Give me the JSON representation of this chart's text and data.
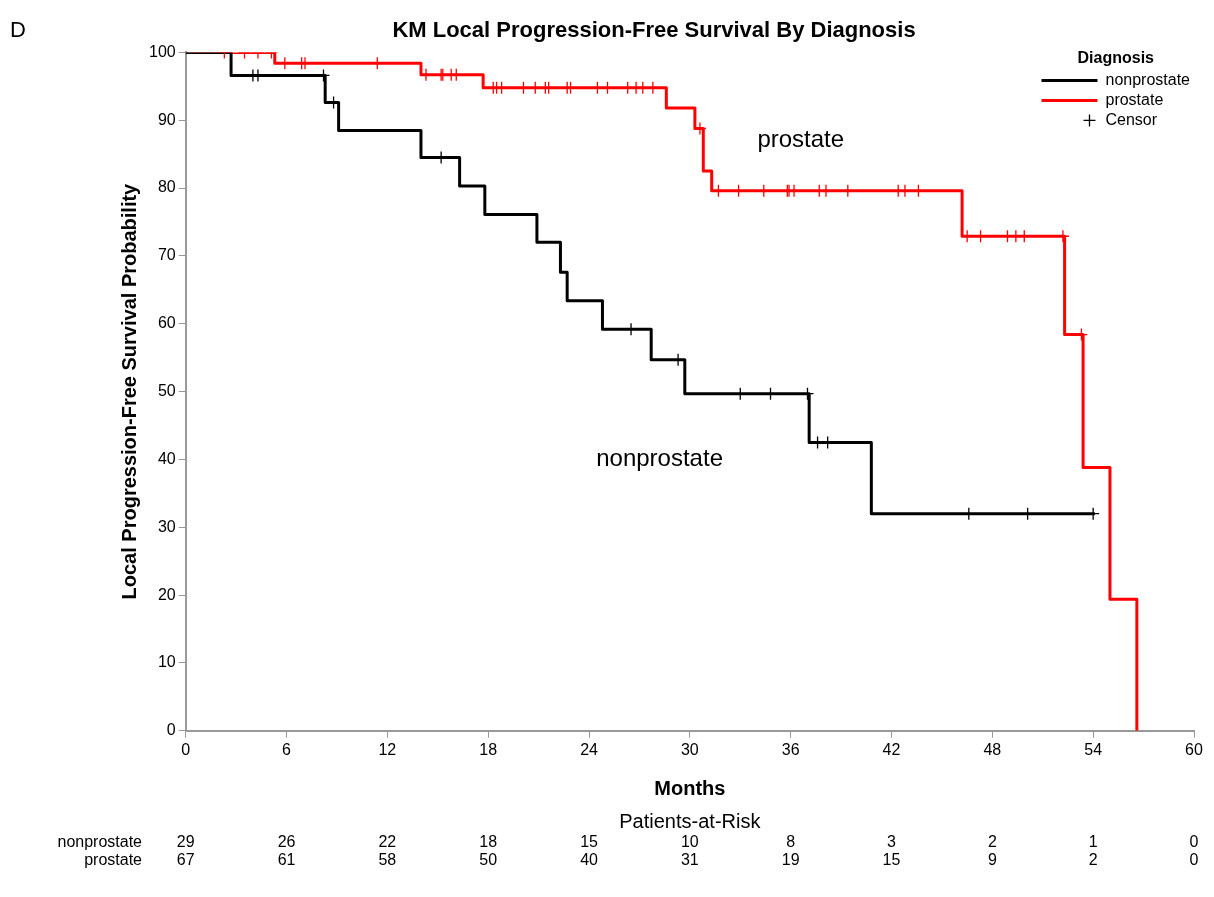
{
  "chart_data": {
    "type": "step",
    "title": "KM Local Progression-Free Survival By Diagnosis",
    "xlabel": "Months",
    "ylabel": "Local Progression-Free Survival Probability",
    "legend_title": "Diagnosis",
    "legend": "top right",
    "grid": false,
    "xlim": [
      0,
      60
    ],
    "xticks": [
      0,
      6,
      12,
      18,
      24,
      30,
      36,
      42,
      48,
      54,
      60
    ],
    "ylim": [
      0,
      100
    ],
    "yticks": [
      0,
      10,
      20,
      30,
      40,
      50,
      60,
      70,
      80,
      90,
      100
    ],
    "line_style": "solid",
    "series": [
      {
        "name": "nonprostate",
        "type": "step",
        "color": "#000000",
        "marker": "none",
        "x": [
          0,
          2.7,
          8.3,
          9.1,
          14.0,
          16.3,
          17.8,
          20.9,
          22.3,
          22.7,
          24.8,
          27.7,
          29.7,
          37.1,
          40.8,
          54.1
        ],
        "values": [
          100,
          96.6,
          92.6,
          88.5,
          84.5,
          80.3,
          76.1,
          72.0,
          67.6,
          63.4,
          59.2,
          54.7,
          49.7,
          42.5,
          32.0,
          32.0
        ]
      },
      {
        "name": "prostate",
        "type": "step",
        "color": "#ff0000",
        "marker": "none",
        "x": [
          0,
          5.3,
          14.0,
          17.7,
          28.6,
          30.3,
          30.8,
          31.3,
          46.2,
          52.3,
          53.4,
          55.0,
          56.6
        ],
        "values": [
          100,
          98.4,
          96.7,
          94.8,
          91.8,
          88.8,
          82.5,
          79.6,
          72.9,
          58.4,
          38.8,
          19.4,
          0
        ]
      },
      {
        "name": "Censor",
        "type": "scatter",
        "marker": "cross",
        "color": "#000000",
        "x": [
          4.0,
          4.3,
          8.2,
          8.8,
          15.2,
          26.5,
          29.3,
          33.0,
          34.8,
          37.0,
          37.6,
          38.2,
          46.6,
          50.1,
          54.0,
          2.3,
          3.5,
          4.3,
          5.1,
          5.9,
          6.9,
          7.1,
          11.4,
          14.3,
          15.2,
          15.3,
          15.8,
          16.1,
          18.3,
          18.5,
          18.8,
          20.1,
          20.8,
          21.4,
          21.6,
          22.7,
          22.9,
          24.5,
          25.1,
          26.3,
          26.8,
          27.2,
          27.8,
          30.6,
          31.7,
          32.9,
          34.4,
          35.8,
          35.9,
          36.2,
          37.7,
          38.1,
          39.4,
          42.4,
          42.8,
          43.6,
          46.5,
          47.3,
          48.9,
          49.4,
          49.9,
          52.2,
          53.3
        ],
        "values": [
          96.6,
          96.6,
          96.6,
          92.6,
          84.5,
          59.2,
          54.7,
          49.7,
          49.7,
          49.7,
          42.5,
          42.5,
          32.0,
          32.0,
          32.0,
          100,
          100,
          100,
          100,
          98.4,
          98.4,
          98.4,
          98.4,
          96.7,
          96.7,
          96.7,
          96.7,
          96.7,
          94.8,
          94.8,
          94.8,
          94.8,
          94.8,
          94.8,
          94.8,
          94.8,
          94.8,
          94.8,
          94.8,
          94.8,
          94.8,
          94.8,
          94.8,
          88.8,
          79.6,
          79.6,
          79.6,
          79.6,
          79.6,
          79.6,
          79.6,
          79.6,
          79.6,
          79.6,
          79.6,
          79.6,
          72.9,
          72.9,
          72.9,
          72.9,
          72.9,
          72.9,
          58.4
        ],
        "colors": [
          "#000000",
          "#000000",
          "#000000",
          "#000000",
          "#000000",
          "#000000",
          "#000000",
          "#000000",
          "#000000",
          "#000000",
          "#000000",
          "#000000",
          "#000000",
          "#000000",
          "#000000",
          "#ff0000",
          "#ff0000",
          "#ff0000",
          "#ff0000",
          "#ff0000",
          "#ff0000",
          "#ff0000",
          "#ff0000",
          "#ff0000",
          "#ff0000",
          "#ff0000",
          "#ff0000",
          "#ff0000",
          "#ff0000",
          "#ff0000",
          "#ff0000",
          "#ff0000",
          "#ff0000",
          "#ff0000",
          "#ff0000",
          "#ff0000",
          "#ff0000",
          "#ff0000",
          "#ff0000",
          "#ff0000",
          "#ff0000",
          "#ff0000",
          "#ff0000",
          "#ff0000",
          "#ff0000",
          "#ff0000",
          "#ff0000",
          "#ff0000",
          "#ff0000",
          "#ff0000",
          "#ff0000",
          "#ff0000",
          "#ff0000",
          "#ff0000",
          "#ff0000",
          "#ff0000",
          "#ff0000",
          "#ff0000",
          "#ff0000",
          "#ff0000",
          "#ff0000",
          "#ff0000",
          "#ff0000"
        ]
      }
    ],
    "annotations": [
      "D",
      "Patients-at-Risk",
      "prostate",
      "nonprostate",
      "nonprostate",
      "29",
      "26",
      "22",
      "18",
      "15",
      "10",
      "8",
      "3",
      "2",
      "1",
      "0",
      "prostate",
      "67",
      "61",
      "58",
      "50",
      "40",
      "31",
      "19",
      "15",
      "9",
      "2",
      "0"
    ]
  }
}
